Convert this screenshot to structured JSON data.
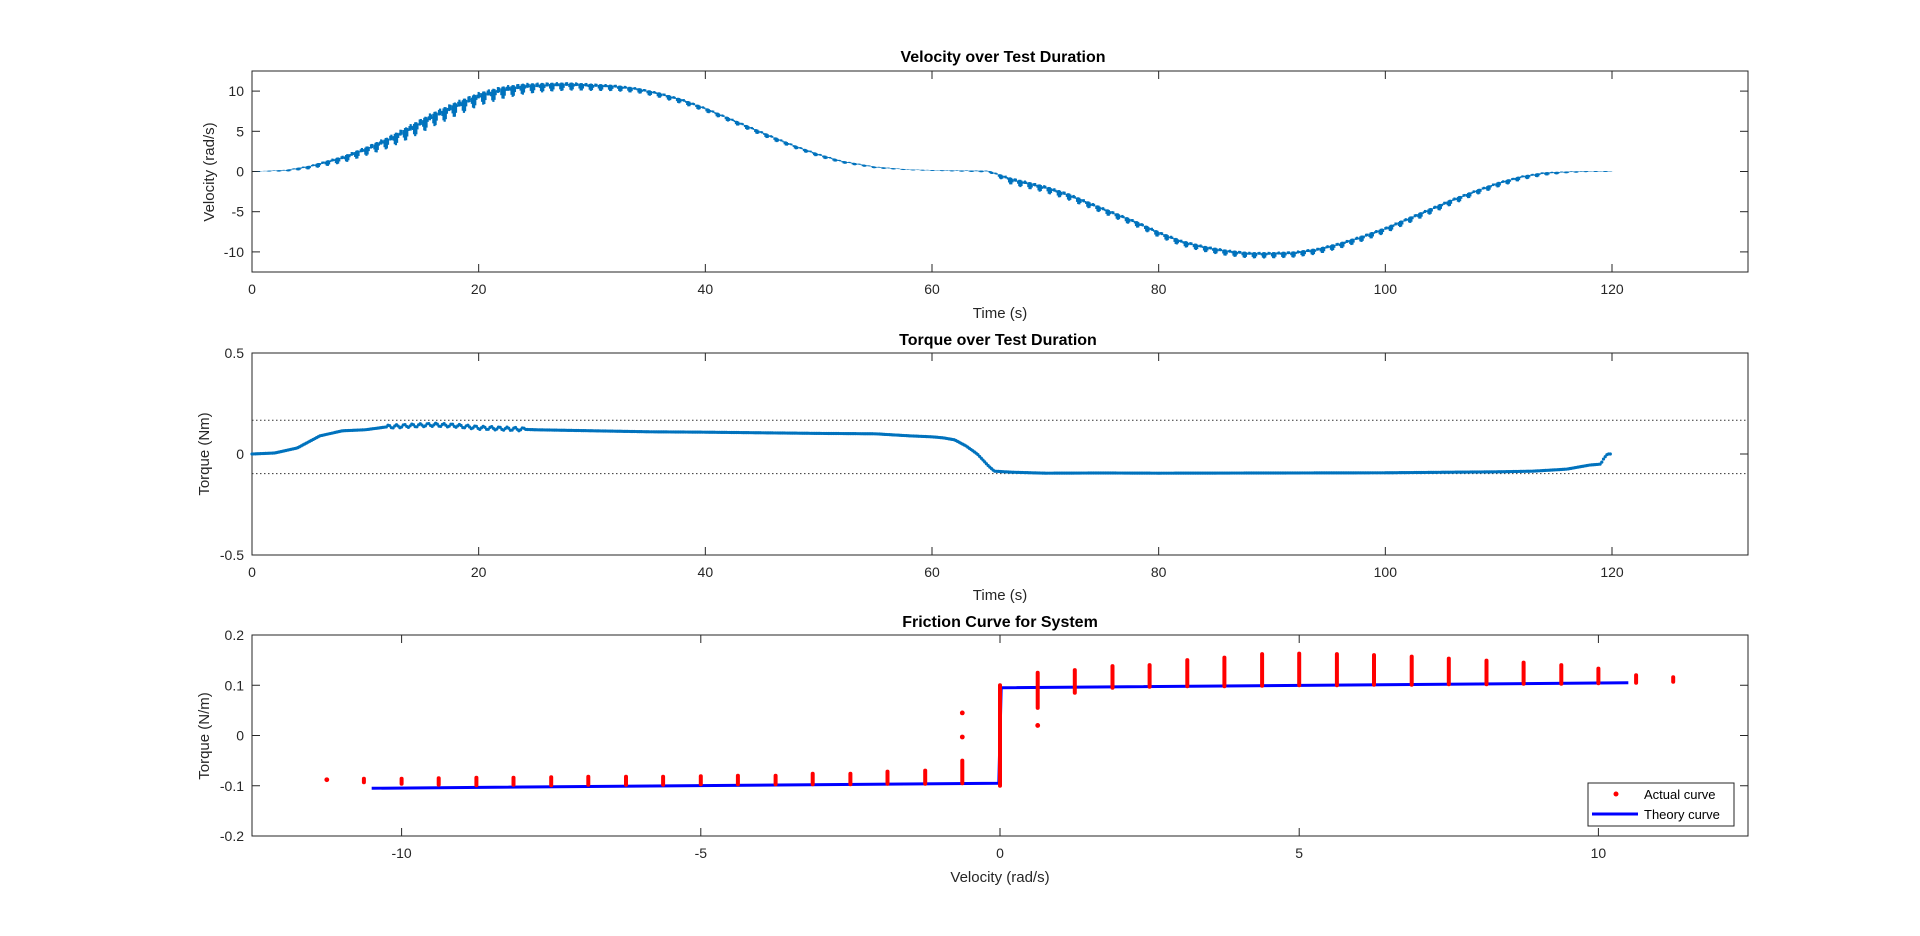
{
  "chart_data": [
    {
      "type": "scatter",
      "title": "Velocity over Test Duration",
      "xlabel": "Time (s)",
      "ylabel": "Velocity (rad/s)",
      "xlim": [
        0,
        132
      ],
      "ylim": [
        -12.5,
        12.5
      ],
      "xticks": [
        0,
        20,
        40,
        60,
        80,
        100,
        120
      ],
      "yticks": [
        10,
        5,
        0,
        -5,
        -10
      ],
      "xtick_labels": [
        "0",
        "20",
        "40",
        "60",
        "80",
        "100",
        "120"
      ],
      "ytick_labels": [
        "10",
        "5",
        "0",
        "-5",
        "-10"
      ],
      "color": "#0072BD",
      "series": [
        {
          "x": [
            0,
            3,
            5,
            8,
            10,
            12,
            14,
            16,
            18,
            20,
            22,
            24,
            26,
            28,
            30,
            32,
            34,
            36,
            38,
            40,
            42,
            44,
            46,
            48,
            50,
            52,
            55,
            58,
            61,
            65,
            67,
            70,
            72,
            75,
            78,
            80,
            82,
            84,
            86,
            88,
            90,
            92,
            94,
            96,
            98,
            100,
            102,
            104,
            106,
            108,
            110,
            112,
            114,
            116,
            118,
            120
          ],
          "y": [
            0,
            0.1,
            0.5,
            1.5,
            2.5,
            3.6,
            5,
            6.5,
            7.8,
            9,
            9.8,
            10.3,
            10.5,
            10.6,
            10.5,
            10.4,
            10.1,
            9.5,
            8.7,
            7.7,
            6.5,
            5.3,
            4.1,
            3,
            2,
            1.2,
            0.5,
            0.2,
            0.1,
            0,
            -1.2,
            -2.2,
            -3.1,
            -4.8,
            -6.5,
            -7.8,
            -8.9,
            -9.6,
            -10.1,
            -10.4,
            -10.4,
            -10.3,
            -9.9,
            -9.2,
            -8.3,
            -7.3,
            -6.1,
            -4.9,
            -3.7,
            -2.6,
            -1.6,
            -0.8,
            -0.3,
            -0.1,
            0,
            0
          ],
          "jitter": [
            0,
            0.2,
            0.4,
            0.8,
            1.0,
            1.3,
            1.5,
            1.6,
            1.6,
            1.5,
            1.4,
            1.2,
            1.0,
            0.9,
            0.8,
            0.7,
            0.6,
            0.6,
            0.6,
            0.5,
            0.5,
            0.5,
            0.5,
            0.4,
            0.4,
            0.3,
            0.2,
            0.1,
            0.1,
            0.2,
            0.8,
            0.8,
            0.8,
            0.7,
            0.7,
            0.7,
            0.7,
            0.7,
            0.7,
            0.7,
            0.7,
            0.7,
            0.7,
            0.7,
            0.7,
            0.7,
            0.7,
            0.7,
            0.7,
            0.6,
            0.6,
            0.5,
            0.4,
            0.2,
            0.1,
            0.1
          ]
        }
      ]
    },
    {
      "type": "scatter",
      "title": "Torque over Test Duration",
      "xlabel": "Time (s)",
      "ylabel": "Torque (Nm)",
      "xlim": [
        0,
        132
      ],
      "ylim": [
        -0.5,
        0.5
      ],
      "xticks": [
        0,
        20,
        40,
        60,
        80,
        100,
        120
      ],
      "yticks": [
        0.5,
        0,
        -0.5
      ],
      "xtick_labels": [
        "0",
        "20",
        "40",
        "60",
        "80",
        "100",
        "120"
      ],
      "ytick_labels": [
        "0.5",
        "0",
        "-0.5"
      ],
      "color": "#0072BD",
      "reference_lines": [
        0.167,
        -0.097
      ],
      "series": [
        {
          "x": [
            0,
            2,
            4,
            5,
            6,
            8,
            10,
            12,
            14,
            16,
            18,
            20,
            25,
            30,
            35,
            40,
            45,
            50,
            55,
            58,
            60,
            61,
            62,
            63,
            64,
            65,
            65.5,
            67,
            70,
            75,
            80,
            90,
            100,
            110,
            113,
            116,
            118,
            119,
            119.3,
            119.6,
            120
          ],
          "y": [
            0,
            0.005,
            0.03,
            0.06,
            0.09,
            0.115,
            0.12,
            0.135,
            0.14,
            0.145,
            0.14,
            0.13,
            0.12,
            0.115,
            0.11,
            0.108,
            0.105,
            0.102,
            0.1,
            0.09,
            0.085,
            0.08,
            0.07,
            0.04,
            0,
            -0.06,
            -0.085,
            -0.09,
            -0.095,
            -0.094,
            -0.095,
            -0.094,
            -0.093,
            -0.088,
            -0.085,
            -0.075,
            -0.055,
            -0.05,
            -0.02,
            0,
            0
          ]
        }
      ]
    },
    {
      "type": "scatter",
      "title": "Friction Curve for System",
      "xlabel": "Velocity (rad/s)",
      "ylabel": "Torque (N/m)",
      "xlim": [
        -12.5,
        12.5
      ],
      "ylim": [
        -0.2,
        0.2
      ],
      "xticks": [
        -10,
        -5,
        0,
        5,
        10
      ],
      "yticks": [
        0.2,
        0.1,
        0,
        -0.1,
        -0.2
      ],
      "xtick_labels": [
        "-10",
        "-5",
        "0",
        "5",
        "10"
      ],
      "ytick_labels": [
        "0.2",
        "0.1",
        "0",
        "-0.1",
        "-0.2"
      ],
      "legend": {
        "location": "bottom-right",
        "entries": [
          "Actual curve",
          "Theory curve"
        ]
      },
      "series": [
        {
          "name": "Actual curve",
          "color": "#FF0000",
          "marker": "point",
          "clusters": [
            {
              "x": -11.25,
              "ymin": -0.09,
              "ymax": -0.086
            },
            {
              "x": -10.63,
              "ymin": -0.093,
              "ymax": -0.086
            },
            {
              "x": -10.0,
              "ymin": -0.096,
              "ymax": -0.086
            },
            {
              "x": -9.38,
              "ymin": -0.098,
              "ymax": -0.085
            },
            {
              "x": -8.75,
              "ymin": -0.099,
              "ymax": -0.084
            },
            {
              "x": -8.13,
              "ymin": -0.098,
              "ymax": -0.084
            },
            {
              "x": -7.5,
              "ymin": -0.099,
              "ymax": -0.083
            },
            {
              "x": -6.88,
              "ymin": -0.098,
              "ymax": -0.082
            },
            {
              "x": -6.25,
              "ymin": -0.098,
              "ymax": -0.082
            },
            {
              "x": -5.63,
              "ymin": -0.098,
              "ymax": -0.082
            },
            {
              "x": -5.0,
              "ymin": -0.097,
              "ymax": -0.081
            },
            {
              "x": -4.38,
              "ymin": -0.097,
              "ymax": -0.08
            },
            {
              "x": -3.75,
              "ymin": -0.097,
              "ymax": -0.08
            },
            {
              "x": -3.13,
              "ymin": -0.097,
              "ymax": -0.076
            },
            {
              "x": -2.5,
              "ymin": -0.097,
              "ymax": -0.076
            },
            {
              "x": -1.88,
              "ymin": -0.096,
              "ymax": -0.072
            },
            {
              "x": -1.25,
              "ymin": -0.096,
              "ymax": -0.07
            },
            {
              "x": -0.63,
              "ymin": -0.095,
              "ymax": -0.05
            },
            {
              "x": -0.63,
              "ymin": -0.003,
              "ymax": -0.003
            },
            {
              "x": -0.63,
              "ymin": 0.045,
              "ymax": 0.045
            },
            {
              "x": 0.0,
              "ymin": -0.1,
              "ymax": 0.1
            },
            {
              "x": 0.63,
              "ymin": 0.055,
              "ymax": 0.125
            },
            {
              "x": 0.63,
              "ymin": 0.02,
              "ymax": 0.02
            },
            {
              "x": 1.25,
              "ymin": 0.085,
              "ymax": 0.13
            },
            {
              "x": 1.88,
              "ymin": 0.095,
              "ymax": 0.138
            },
            {
              "x": 2.5,
              "ymin": 0.097,
              "ymax": 0.14
            },
            {
              "x": 3.13,
              "ymin": 0.098,
              "ymax": 0.15
            },
            {
              "x": 3.75,
              "ymin": 0.098,
              "ymax": 0.155
            },
            {
              "x": 4.38,
              "ymin": 0.099,
              "ymax": 0.162
            },
            {
              "x": 5.0,
              "ymin": 0.1,
              "ymax": 0.163
            },
            {
              "x": 5.63,
              "ymin": 0.1,
              "ymax": 0.162
            },
            {
              "x": 6.25,
              "ymin": 0.101,
              "ymax": 0.16
            },
            {
              "x": 6.88,
              "ymin": 0.101,
              "ymax": 0.157
            },
            {
              "x": 7.5,
              "ymin": 0.102,
              "ymax": 0.153
            },
            {
              "x": 8.13,
              "ymin": 0.102,
              "ymax": 0.149
            },
            {
              "x": 8.75,
              "ymin": 0.103,
              "ymax": 0.145
            },
            {
              "x": 9.38,
              "ymin": 0.103,
              "ymax": 0.14
            },
            {
              "x": 10.0,
              "ymin": 0.104,
              "ymax": 0.133
            },
            {
              "x": 10.63,
              "ymin": 0.105,
              "ymax": 0.12
            },
            {
              "x": 11.25,
              "ymin": 0.107,
              "ymax": 0.116
            }
          ]
        },
        {
          "name": "Theory curve",
          "color": "#0000FF",
          "marker": "line",
          "x": [
            -10.5,
            -0.02,
            0,
            0.02,
            10.5
          ],
          "y": [
            -0.105,
            -0.095,
            0,
            0.095,
            0.105
          ]
        }
      ]
    }
  ]
}
